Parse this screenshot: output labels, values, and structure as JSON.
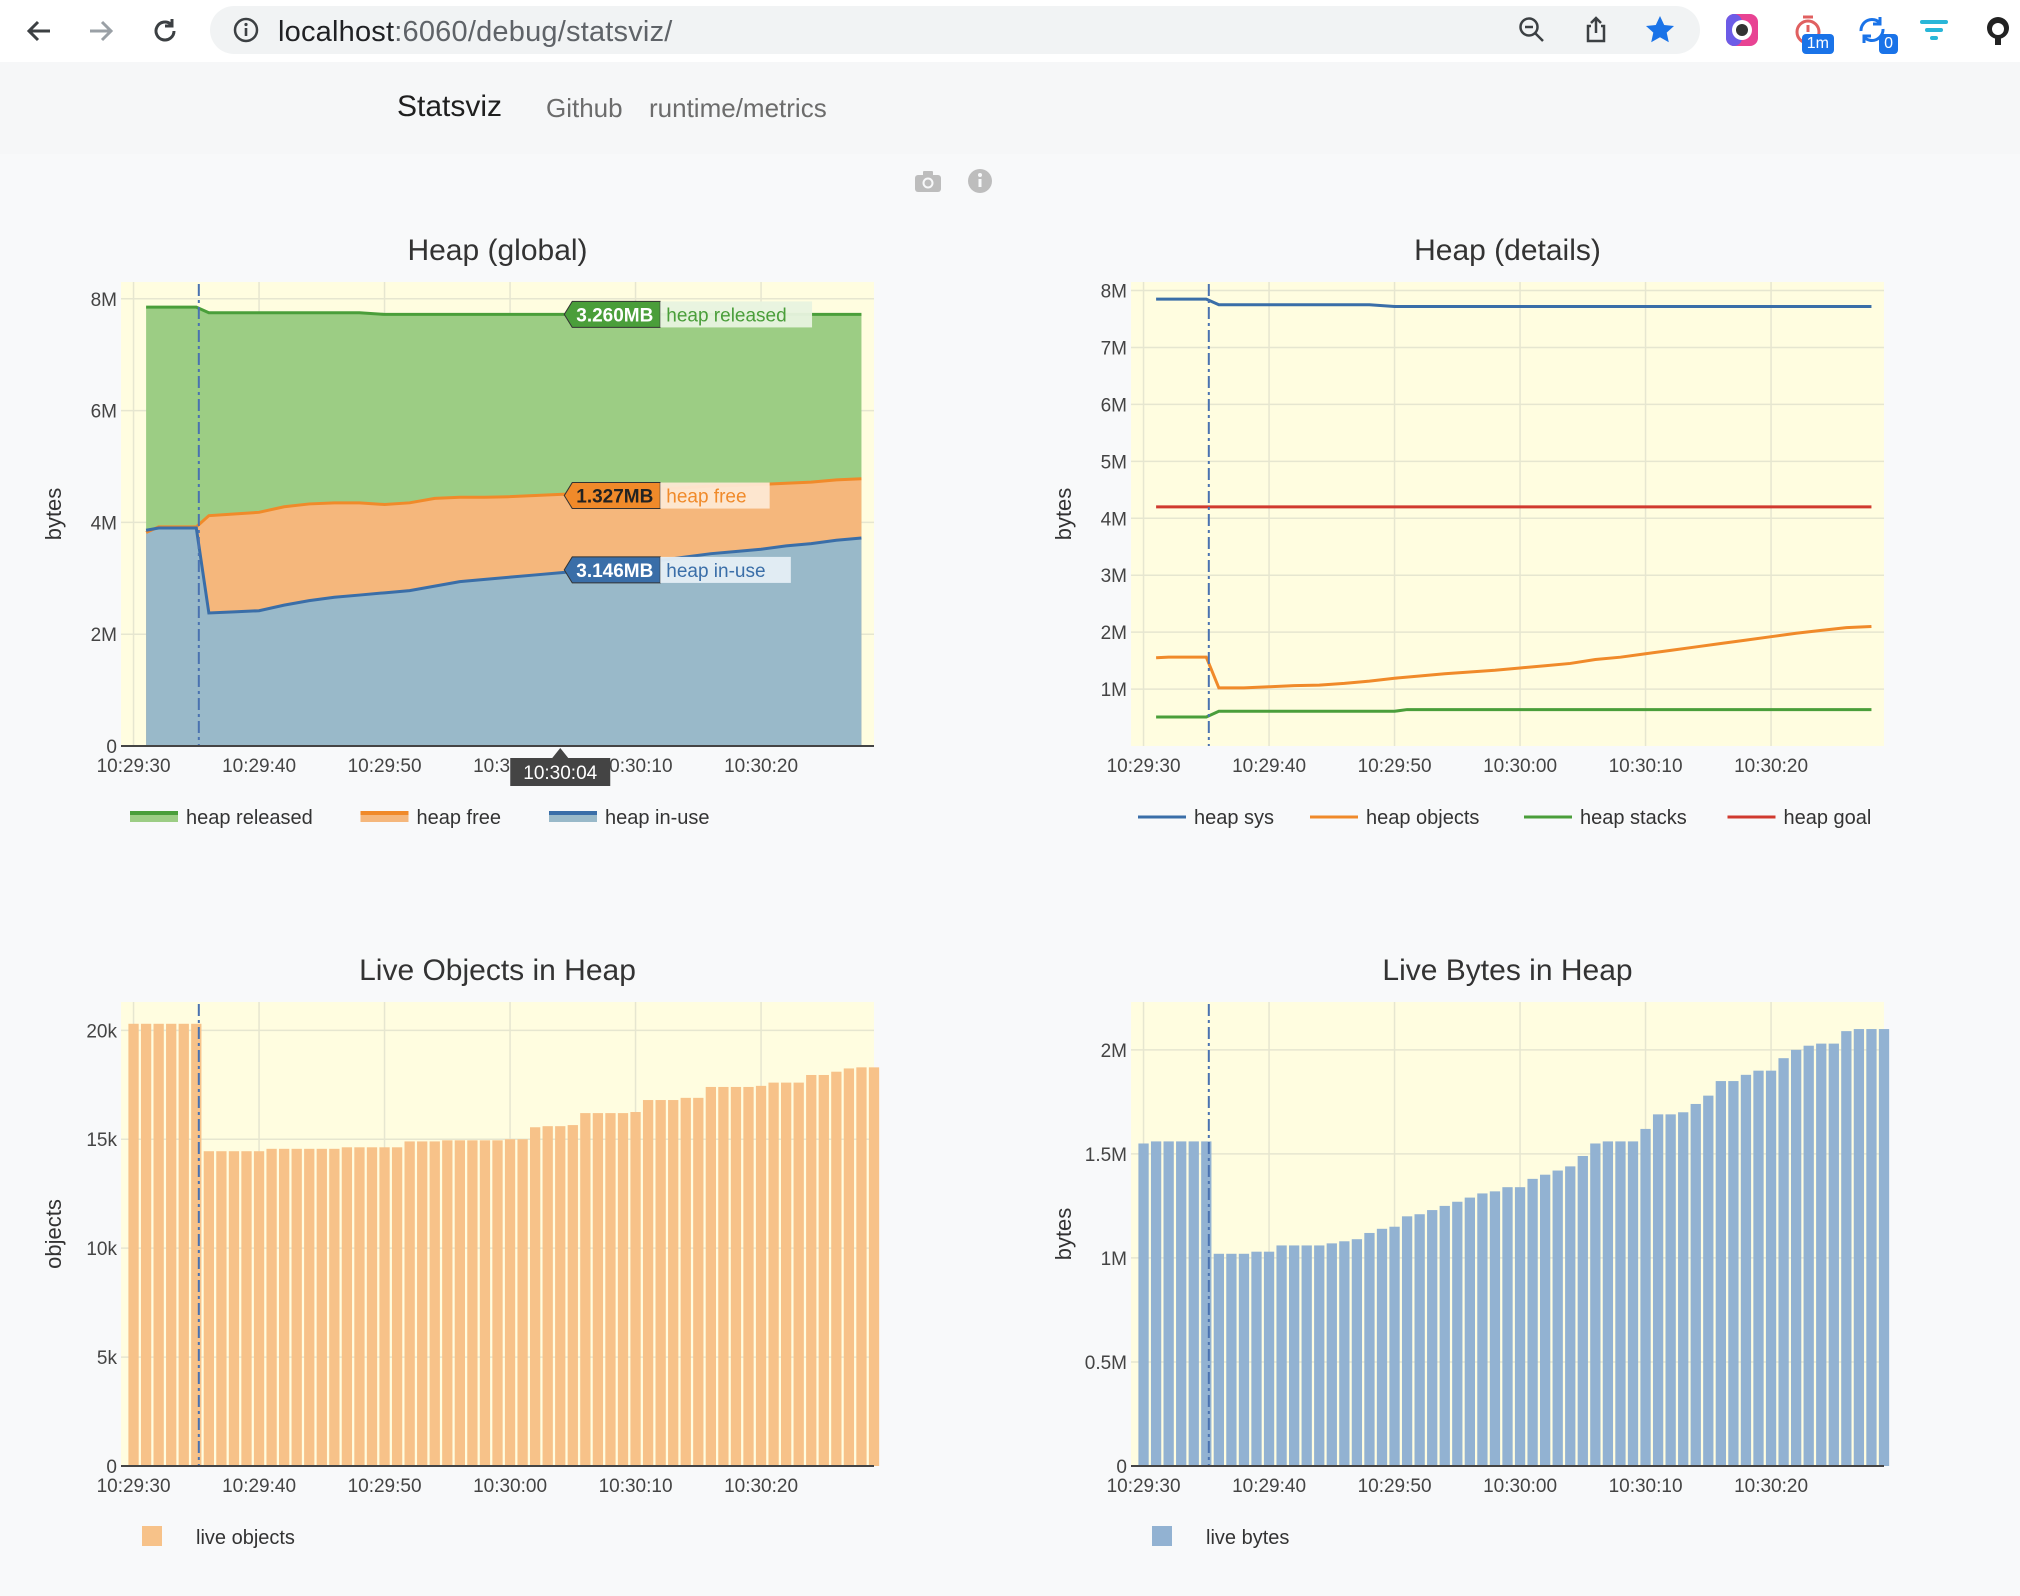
{
  "browser": {
    "url_host": "localhost",
    "url_rest": ":6060/debug/statsviz/",
    "extensions": [
      {
        "name": "color-picker-extension-icon"
      },
      {
        "name": "timer-extension-icon",
        "badge": "1m"
      },
      {
        "name": "sync-extension-icon",
        "badge": "0"
      },
      {
        "name": "filter-extension-icon"
      },
      {
        "name": "github-extension-icon"
      }
    ]
  },
  "site": {
    "brand": "Statsviz",
    "links": [
      "Github",
      "runtime/metrics"
    ]
  },
  "colors": {
    "plot_bg": "#fffde0",
    "green": "#4a9e3a",
    "orange": "#f08a2a",
    "blue": "#3a6ea8",
    "red": "#d03a2f",
    "green_fill": "#9ccd84",
    "orange_fill": "#f5b77c",
    "blue_fill": "#99b9c9",
    "bar_orange": "#f7c289",
    "bar_blue": "#92b2d2"
  },
  "chart_data": [
    {
      "id": "heap-global",
      "type": "area",
      "title": "Heap (global)",
      "ylabel": "bytes",
      "ylim": [
        0,
        8300000
      ],
      "yticks": [
        [
          0,
          "0"
        ],
        [
          2000000,
          "2M"
        ],
        [
          4000000,
          "4M"
        ],
        [
          6000000,
          "6M"
        ],
        [
          8000000,
          "8M"
        ]
      ],
      "xrange": [
        -1,
        59
      ],
      "xticks": [
        [
          0,
          "10:29:30"
        ],
        [
          10,
          "10:29:40"
        ],
        [
          20,
          "10:29:50"
        ],
        [
          30,
          "10:30:00"
        ],
        [
          40,
          "10:30:10"
        ],
        [
          50,
          "10:30:20"
        ]
      ],
      "gc_marker_x": 5.2,
      "hover_x": 34,
      "hover_label": "10:30:04",
      "series": [
        {
          "name": "heap released",
          "color": "#4a9e3a",
          "fill": "#9ccd84",
          "x": [
            1,
            2,
            3,
            4,
            5,
            6,
            8,
            10,
            14,
            18,
            20,
            22,
            25,
            28,
            32,
            36,
            40,
            45,
            50,
            54,
            58
          ],
          "y": [
            7.85,
            7.85,
            7.85,
            7.85,
            7.85,
            7.75,
            7.75,
            7.75,
            7.75,
            7.75,
            7.72,
            7.72,
            7.72,
            7.72,
            7.72,
            7.72,
            7.72,
            7.72,
            7.72,
            7.72,
            7.72
          ]
        },
        {
          "name": "heap free",
          "color": "#f08a2a",
          "fill": "#f5b77c",
          "x": [
            1,
            2,
            3,
            4,
            5,
            6,
            8,
            10,
            12,
            14,
            16,
            18,
            20,
            22,
            24,
            26,
            28,
            30,
            32,
            34,
            36,
            38,
            40,
            42,
            44,
            46,
            48,
            50,
            52,
            54,
            56,
            58
          ],
          "y": [
            3.82,
            3.92,
            3.92,
            3.92,
            3.92,
            4.12,
            4.15,
            4.18,
            4.28,
            4.33,
            4.35,
            4.35,
            4.32,
            4.35,
            4.43,
            4.45,
            4.45,
            4.46,
            4.48,
            4.5,
            4.52,
            4.55,
            4.58,
            4.6,
            4.62,
            4.65,
            4.66,
            4.68,
            4.7,
            4.72,
            4.76,
            4.78
          ]
        },
        {
          "name": "heap in-use",
          "color": "#3a6ea8",
          "fill": "#99b9c9",
          "x": [
            1,
            2,
            3,
            4,
            5,
            6,
            8,
            10,
            12,
            14,
            16,
            18,
            20,
            22,
            24,
            26,
            28,
            30,
            32,
            34,
            36,
            38,
            40,
            42,
            44,
            46,
            48,
            50,
            52,
            54,
            56,
            58
          ],
          "y": [
            3.86,
            3.9,
            3.9,
            3.9,
            3.9,
            2.38,
            2.4,
            2.42,
            2.52,
            2.6,
            2.66,
            2.7,
            2.74,
            2.78,
            2.86,
            2.94,
            2.98,
            3.02,
            3.06,
            3.1,
            3.14,
            3.2,
            3.26,
            3.32,
            3.38,
            3.44,
            3.48,
            3.52,
            3.58,
            3.62,
            3.68,
            3.72
          ]
        }
      ],
      "hover": [
        {
          "value": "3.260MB",
          "name": "heap released",
          "color": "#4a9e3a",
          "label_bg": "#e8f3df",
          "y": 7.72
        },
        {
          "value": "1.327MB",
          "name": "heap free",
          "color": "#f08a2a",
          "label_bg": "#fde8d4",
          "y": 4.48
        },
        {
          "value": "3.146MB",
          "name": "heap in-use",
          "color": "#3a6ea8",
          "label_bg": "#e5eef5",
          "y": 3.15
        }
      ],
      "legend": [
        "heap released",
        "heap free",
        "heap in-use"
      ]
    },
    {
      "id": "heap-details",
      "type": "line",
      "title": "Heap (details)",
      "ylabel": "bytes",
      "ylim": [
        0,
        8150000
      ],
      "yticks": [
        [
          1000000,
          "1M"
        ],
        [
          2000000,
          "2M"
        ],
        [
          3000000,
          "3M"
        ],
        [
          4000000,
          "4M"
        ],
        [
          5000000,
          "5M"
        ],
        [
          6000000,
          "6M"
        ],
        [
          7000000,
          "7M"
        ],
        [
          8000000,
          "8M"
        ]
      ],
      "xrange": [
        -1,
        59
      ],
      "xticks": [
        [
          0,
          "10:29:30"
        ],
        [
          10,
          "10:29:40"
        ],
        [
          20,
          "10:29:50"
        ],
        [
          30,
          "10:30:00"
        ],
        [
          40,
          "10:30:10"
        ],
        [
          50,
          "10:30:20"
        ]
      ],
      "gc_marker_x": 5.2,
      "series": [
        {
          "name": "heap sys",
          "color": "#3a6ea8",
          "x": [
            1,
            2,
            3,
            4,
            5,
            6,
            8,
            10,
            14,
            18,
            20,
            22,
            26,
            30,
            34,
            40,
            46,
            52,
            58
          ],
          "y": [
            7.85,
            7.85,
            7.85,
            7.85,
            7.85,
            7.75,
            7.75,
            7.75,
            7.75,
            7.75,
            7.72,
            7.72,
            7.72,
            7.72,
            7.72,
            7.72,
            7.72,
            7.72,
            7.72
          ]
        },
        {
          "name": "heap objects",
          "color": "#f08a2a",
          "x": [
            1,
            2,
            3,
            4,
            5,
            6,
            8,
            10,
            12,
            14,
            16,
            18,
            20,
            22,
            24,
            26,
            28,
            30,
            32,
            34,
            36,
            38,
            40,
            42,
            44,
            46,
            48,
            50,
            52,
            54,
            56,
            58
          ],
          "y": [
            1.55,
            1.56,
            1.56,
            1.56,
            1.56,
            1.02,
            1.02,
            1.04,
            1.06,
            1.07,
            1.1,
            1.14,
            1.19,
            1.23,
            1.27,
            1.3,
            1.33,
            1.37,
            1.41,
            1.45,
            1.52,
            1.56,
            1.62,
            1.68,
            1.74,
            1.8,
            1.86,
            1.92,
            1.98,
            2.03,
            2.08,
            2.1
          ]
        },
        {
          "name": "heap stacks",
          "color": "#4a9e3a",
          "x": [
            1,
            3,
            5,
            6,
            10,
            20,
            21,
            30,
            40,
            50,
            58
          ],
          "y": [
            0.51,
            0.51,
            0.51,
            0.61,
            0.61,
            0.61,
            0.64,
            0.64,
            0.64,
            0.64,
            0.64
          ]
        },
        {
          "name": "heap goal",
          "color": "#d03a2f",
          "x": [
            1,
            58
          ],
          "y": [
            4.2,
            4.2
          ]
        }
      ],
      "legend": [
        "heap sys",
        "heap objects",
        "heap stacks",
        "heap goal"
      ]
    },
    {
      "id": "live-objects",
      "type": "bar",
      "title": "Live Objects in Heap",
      "ylabel": "objects",
      "ylim": [
        0,
        21300
      ],
      "yticks": [
        [
          0,
          "0"
        ],
        [
          5000,
          "5k"
        ],
        [
          10000,
          "10k"
        ],
        [
          15000,
          "15k"
        ],
        [
          20000,
          "20k"
        ]
      ],
      "xrange": [
        -1,
        59
      ],
      "xticks": [
        [
          0,
          "10:29:30"
        ],
        [
          10,
          "10:29:40"
        ],
        [
          20,
          "10:29:50"
        ],
        [
          30,
          "10:30:00"
        ],
        [
          40,
          "10:30:10"
        ],
        [
          50,
          "10:30:20"
        ]
      ],
      "gc_marker_x": 5.2,
      "color": "#f7c289",
      "values": [
        20300,
        20300,
        20300,
        20300,
        20300,
        20300,
        14450,
        14450,
        14450,
        14450,
        14450,
        14560,
        14560,
        14560,
        14560,
        14560,
        14560,
        14630,
        14630,
        14630,
        14630,
        14630,
        14900,
        14900,
        14900,
        14950,
        14950,
        14950,
        14950,
        14950,
        15000,
        15000,
        15550,
        15600,
        15600,
        15650,
        16200,
        16200,
        16200,
        16200,
        16250,
        16800,
        16800,
        16800,
        16900,
        16900,
        17400,
        17400,
        17400,
        17400,
        17450,
        17600,
        17600,
        17600,
        17950,
        17950,
        18100,
        18250,
        18300,
        18300
      ],
      "series_name": "live objects"
    },
    {
      "id": "live-bytes",
      "type": "bar",
      "title": "Live Bytes in Heap",
      "ylabel": "bytes",
      "ylim": [
        0,
        2230000
      ],
      "yticks": [
        [
          0,
          "0"
        ],
        [
          500000,
          "0.5M"
        ],
        [
          1000000,
          "1M"
        ],
        [
          1500000,
          "1.5M"
        ],
        [
          2000000,
          "2M"
        ]
      ],
      "xrange": [
        -1,
        59
      ],
      "xticks": [
        [
          0,
          "10:29:30"
        ],
        [
          10,
          "10:29:40"
        ],
        [
          20,
          "10:29:50"
        ],
        [
          30,
          "10:30:00"
        ],
        [
          40,
          "10:30:10"
        ],
        [
          50,
          "10:30:20"
        ]
      ],
      "gc_marker_x": 5.2,
      "color": "#92b2d2",
      "values": [
        1550000,
        1560000,
        1560000,
        1560000,
        1560000,
        1560000,
        1020000,
        1020000,
        1020000,
        1030000,
        1030000,
        1060000,
        1060000,
        1060000,
        1060000,
        1070000,
        1080000,
        1090000,
        1120000,
        1140000,
        1150000,
        1200000,
        1210000,
        1230000,
        1250000,
        1270000,
        1290000,
        1310000,
        1320000,
        1340000,
        1340000,
        1380000,
        1400000,
        1420000,
        1440000,
        1490000,
        1550000,
        1560000,
        1560000,
        1560000,
        1620000,
        1690000,
        1690000,
        1700000,
        1740000,
        1780000,
        1850000,
        1850000,
        1880000,
        1900000,
        1900000,
        1960000,
        2000000,
        2020000,
        2030000,
        2030000,
        2090000,
        2100000,
        2100000,
        2100000
      ],
      "series_name": "live bytes"
    }
  ]
}
